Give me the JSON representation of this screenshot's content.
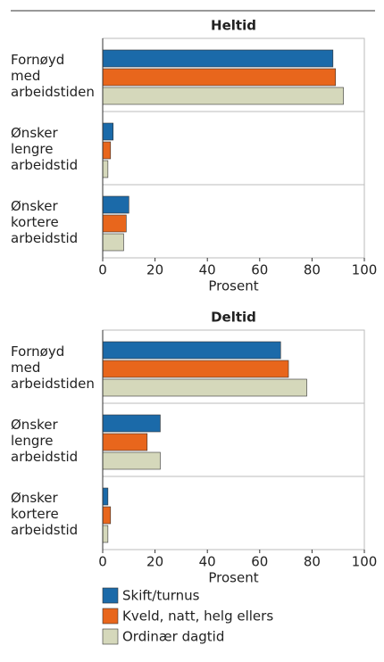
{
  "chart_data": [
    {
      "type": "bar",
      "orientation": "horizontal",
      "title": "Heltid",
      "categories": [
        "Fornøyd med arbeidstiden",
        "Ønsker lengre arbeidstid",
        "Ønsker kortere arbeidstid"
      ],
      "series": [
        {
          "name": "Skift/turnus",
          "color": "#1b6aa9",
          "values": [
            88,
            4,
            10
          ]
        },
        {
          "name": "Kveld, natt, helg ellers",
          "color": "#e8661c",
          "values": [
            89,
            3,
            9
          ]
        },
        {
          "name": "Ordinær dagtid",
          "color": "#d5d8bb",
          "values": [
            92,
            2,
            8
          ]
        }
      ],
      "xlim": [
        0,
        100
      ],
      "xticks": [
        0,
        20,
        40,
        60,
        80,
        100
      ],
      "xlabel": "Prosent"
    },
    {
      "type": "bar",
      "orientation": "horizontal",
      "title": "Deltid",
      "categories": [
        "Fornøyd med arbeidstiden",
        "Ønsker lengre arbeidstid",
        "Ønsker kortere arbeidstid"
      ],
      "series": [
        {
          "name": "Skift/turnus",
          "color": "#1b6aa9",
          "values": [
            68,
            22,
            2
          ]
        },
        {
          "name": "Kveld, natt, helg ellers",
          "color": "#e8661c",
          "values": [
            71,
            17,
            3
          ]
        },
        {
          "name": "Ordinær dagtid",
          "color": "#d5d8bb",
          "values": [
            78,
            22,
            2
          ]
        }
      ],
      "xlim": [
        0,
        100
      ],
      "xticks": [
        0,
        20,
        40,
        60,
        80,
        100
      ],
      "xlabel": "Prosent"
    }
  ]
}
